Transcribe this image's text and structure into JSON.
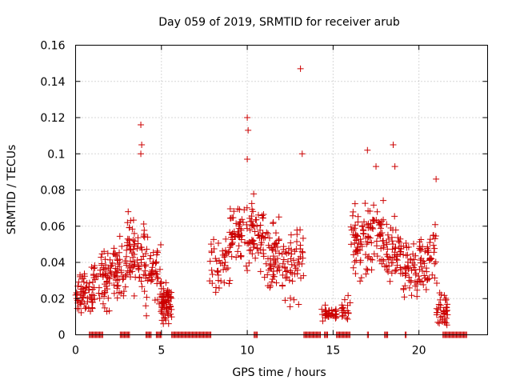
{
  "chart_data": {
    "type": "scatter",
    "title": "Day 059 of 2019, SRMTID for receiver arub",
    "xlabel": "GPS time / hours",
    "ylabel": "SRMTID / TECUs",
    "xlim": [
      0,
      24
    ],
    "ylim": [
      0,
      0.16
    ],
    "xticks": [
      0,
      5,
      10,
      15,
      20
    ],
    "xtick_labels": [
      "0",
      "5",
      "10",
      "15",
      "20"
    ],
    "yticks": [
      0,
      0.02,
      0.04,
      0.06,
      0.08,
      0.1,
      0.12,
      0.14,
      0.16
    ],
    "ytick_labels": [
      "0",
      "0.02",
      "0.04",
      "0.06",
      "0.08",
      "0.1",
      "0.12",
      "0.14",
      "0.16"
    ],
    "grid": true,
    "marker": "plus",
    "series_color": "#cc0000",
    "notable_points": [
      {
        "x": 13.1,
        "y": 0.147
      },
      {
        "x": 10.0,
        "y": 0.12
      },
      {
        "x": 3.8,
        "y": 0.116
      },
      {
        "x": 10.05,
        "y": 0.113
      },
      {
        "x": 18.5,
        "y": 0.105
      },
      {
        "x": 3.85,
        "y": 0.105
      },
      {
        "x": 17.0,
        "y": 0.102
      },
      {
        "x": 3.8,
        "y": 0.1
      },
      {
        "x": 13.2,
        "y": 0.1
      },
      {
        "x": 10.0,
        "y": 0.097
      },
      {
        "x": 17.5,
        "y": 0.093
      },
      {
        "x": 18.6,
        "y": 0.093
      },
      {
        "x": 21.0,
        "y": 0.086
      }
    ],
    "segments": [
      {
        "x_start": 0.0,
        "x_end": 1.0,
        "y_center": 0.024,
        "y_spread": 0.018,
        "count": 60
      },
      {
        "x_start": 1.0,
        "x_end": 2.0,
        "y_center": 0.03,
        "y_spread": 0.022,
        "count": 55
      },
      {
        "x_start": 2.0,
        "x_end": 3.0,
        "y_center": 0.035,
        "y_spread": 0.028,
        "count": 55
      },
      {
        "x_start": 3.0,
        "x_end": 4.0,
        "y_center": 0.045,
        "y_spread": 0.032,
        "count": 65
      },
      {
        "x_start": 4.0,
        "x_end": 5.0,
        "y_center": 0.035,
        "y_spread": 0.03,
        "count": 55
      },
      {
        "x_start": 5.0,
        "x_end": 5.6,
        "y_center": 0.018,
        "y_spread": 0.014,
        "count": 70
      },
      {
        "x_start": 7.8,
        "x_end": 9.0,
        "y_center": 0.038,
        "y_spread": 0.022,
        "count": 45
      },
      {
        "x_start": 9.0,
        "x_end": 10.0,
        "y_center": 0.055,
        "y_spread": 0.026,
        "count": 55
      },
      {
        "x_start": 10.0,
        "x_end": 11.0,
        "y_center": 0.055,
        "y_spread": 0.028,
        "count": 55
      },
      {
        "x_start": 11.0,
        "x_end": 12.0,
        "y_center": 0.045,
        "y_spread": 0.026,
        "count": 55
      },
      {
        "x_start": 12.0,
        "x_end": 13.3,
        "y_center": 0.04,
        "y_spread": 0.028,
        "count": 60
      },
      {
        "x_start": 14.3,
        "x_end": 15.2,
        "y_center": 0.012,
        "y_spread": 0.006,
        "count": 35
      },
      {
        "x_start": 15.5,
        "x_end": 16.0,
        "y_center": 0.015,
        "y_spread": 0.01,
        "count": 20
      },
      {
        "x_start": 16.0,
        "x_end": 17.0,
        "y_center": 0.05,
        "y_spread": 0.028,
        "count": 55
      },
      {
        "x_start": 17.0,
        "x_end": 18.0,
        "y_center": 0.055,
        "y_spread": 0.026,
        "count": 55
      },
      {
        "x_start": 18.0,
        "x_end": 19.0,
        "y_center": 0.045,
        "y_spread": 0.025,
        "count": 55
      },
      {
        "x_start": 19.0,
        "x_end": 20.0,
        "y_center": 0.035,
        "y_spread": 0.022,
        "count": 50
      },
      {
        "x_start": 20.0,
        "x_end": 21.0,
        "y_center": 0.045,
        "y_spread": 0.025,
        "count": 55
      },
      {
        "x_start": 21.0,
        "x_end": 21.7,
        "y_center": 0.015,
        "y_spread": 0.015,
        "count": 40
      }
    ],
    "zero_ranges": [
      [
        0.8,
        1.6
      ],
      [
        2.6,
        3.2
      ],
      [
        4.1,
        4.4
      ],
      [
        4.7,
        5.0
      ],
      [
        5.6,
        7.9
      ],
      [
        10.4,
        10.6
      ],
      [
        13.3,
        14.3
      ],
      [
        14.5,
        14.7
      ],
      [
        15.2,
        16.0
      ],
      [
        17.0,
        17.1
      ],
      [
        18.0,
        18.2
      ],
      [
        19.2,
        19.3
      ],
      [
        21.4,
        22.8
      ]
    ]
  }
}
